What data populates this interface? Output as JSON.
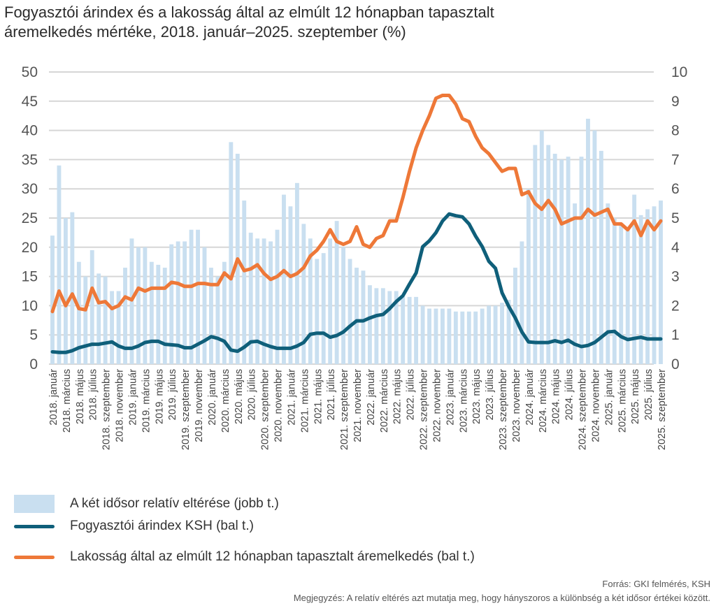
{
  "title_line1": "Fogyasztói árindex és a lakosság által az elmúlt 12 hónapban tapasztalt",
  "title_line2": "áremelkedés mértéke, 2018. január–2025. szeptember (%)",
  "chart_data": {
    "type": "bar+line",
    "title": "Fogyasztói árindex és a lakosság által az elmúlt 12 hónapban tapasztalt áremelkedés mértéke, 2018. január–2025. szeptember (%)",
    "x_start": "2018-01",
    "x_end": "2025-09",
    "left_axis": {
      "ylim": [
        0,
        50
      ],
      "ticks": [
        0,
        5,
        10,
        15,
        20,
        25,
        30,
        35,
        40,
        45,
        50
      ]
    },
    "right_axis": {
      "ylim": [
        0,
        10
      ],
      "ticks": [
        0,
        1,
        2,
        3,
        4,
        5,
        6,
        7,
        8,
        9,
        10
      ]
    },
    "grid": true,
    "legend_position": "bottom",
    "x_tick_labels": [
      "2018. január",
      "2018. március",
      "2018. május",
      "2018. július",
      "2018. szeptember",
      "2018. november",
      "2019. január",
      "2019. március",
      "2019. május",
      "2019. július",
      "2019. szeptember",
      "2019. november",
      "2020. január",
      "2020. március",
      "2020. május",
      "2020. július",
      "2020. szeptember",
      "2020. november",
      "2021. január",
      "2021. március",
      "2021. május",
      "2021. július",
      "2021. szeptember",
      "2021. november",
      "2022. január",
      "2022. március",
      "2022. május",
      "2022. július",
      "2022. szeptember",
      "2022. november",
      "2023. január",
      "2023. március",
      "2023. május",
      "2023. július",
      "2023. szeptember",
      "2023. november",
      "2024. január",
      "2024. március",
      "2024. május",
      "2024. július",
      "2024. szeptember",
      "2024. november",
      "2025. január",
      "2025. március",
      "2025. május",
      "2025. július",
      "2025. szeptember"
    ],
    "series": [
      {
        "name": "A két idősor relatív eltérése (jobb t.)",
        "type": "bar",
        "axis": "right",
        "color": "#c9dff0",
        "values": [
          4.4,
          6.8,
          5.0,
          5.2,
          3.5,
          3.0,
          3.9,
          3.1,
          3.0,
          2.5,
          2.5,
          3.3,
          4.3,
          4.0,
          4.0,
          3.5,
          3.4,
          3.3,
          4.1,
          4.2,
          4.2,
          4.6,
          4.6,
          4.0,
          3.3,
          3.0,
          3.5,
          7.6,
          7.2,
          5.6,
          4.5,
          4.3,
          4.3,
          4.2,
          4.6,
          5.8,
          5.4,
          6.2,
          4.8,
          4.3,
          3.6,
          3.8,
          4.3,
          4.9,
          4.0,
          3.6,
          3.3,
          3.2,
          2.7,
          2.6,
          2.6,
          2.5,
          2.5,
          2.3,
          2.3,
          2.3,
          2.0,
          1.9,
          1.9,
          1.9,
          1.9,
          1.8,
          1.8,
          1.8,
          1.8,
          1.9,
          2.0,
          2.0,
          2.1,
          2.2,
          3.3,
          4.2,
          6.0,
          7.5,
          8.0,
          7.5,
          7.2,
          7.0,
          7.1,
          5.5,
          7.1,
          8.4,
          8.0,
          7.3,
          5.5,
          5.0,
          4.8,
          4.7,
          5.8,
          5.1,
          5.3,
          5.4,
          5.6
        ]
      },
      {
        "name": "Fogyasztói árindex KSH (bal t.)",
        "type": "line",
        "axis": "left",
        "color": "#0f5f7a",
        "values": [
          2.1,
          2.0,
          2.0,
          2.3,
          2.8,
          3.1,
          3.4,
          3.4,
          3.6,
          3.8,
          3.1,
          2.7,
          2.7,
          3.1,
          3.7,
          3.9,
          3.9,
          3.4,
          3.3,
          3.2,
          2.8,
          2.8,
          3.4,
          4.0,
          4.7,
          4.4,
          3.9,
          2.4,
          2.2,
          2.9,
          3.8,
          3.9,
          3.4,
          3.0,
          2.7,
          2.7,
          2.7,
          3.1,
          3.7,
          5.1,
          5.3,
          5.3,
          4.6,
          4.9,
          5.5,
          6.5,
          7.4,
          7.4,
          7.9,
          8.3,
          8.5,
          9.5,
          10.7,
          11.7,
          13.7,
          15.6,
          20.1,
          21.1,
          22.5,
          24.5,
          25.7,
          25.4,
          25.2,
          24.0,
          21.9,
          20.1,
          17.6,
          16.4,
          12.2,
          9.9,
          7.9,
          5.5,
          3.8,
          3.7,
          3.7,
          3.7,
          4.0,
          3.7,
          4.1,
          3.4,
          3.0,
          3.2,
          3.7,
          4.6,
          5.5,
          5.6,
          4.7,
          4.2,
          4.4,
          4.6,
          4.3,
          4.3,
          4.3
        ]
      },
      {
        "name": "Lakosság által az elmúlt 12 hónapban tapasztalt áremelkedés (bal t.)",
        "type": "line",
        "axis": "left",
        "color": "#ee7838",
        "values": [
          9.0,
          12.5,
          10.0,
          12.0,
          9.5,
          9.3,
          13.0,
          10.5,
          10.7,
          9.5,
          10.0,
          11.5,
          11.0,
          13.0,
          12.5,
          13.0,
          13.0,
          13.0,
          14.0,
          13.8,
          13.3,
          13.3,
          13.8,
          13.8,
          13.6,
          13.6,
          15.6,
          14.6,
          18.0,
          16.0,
          16.3,
          17.0,
          15.5,
          14.5,
          15.0,
          16.0,
          15.0,
          15.5,
          16.5,
          18.5,
          19.5,
          21.0,
          23.0,
          21.0,
          20.5,
          21.0,
          23.5,
          20.5,
          20.0,
          21.5,
          22.0,
          24.5,
          24.5,
          28.5,
          33.0,
          37.0,
          40.0,
          42.5,
          45.5,
          46.0,
          46.0,
          44.5,
          42.0,
          41.5,
          39.0,
          37.0,
          36.0,
          34.5,
          33.0,
          33.5,
          33.5,
          29.0,
          29.5,
          27.5,
          26.5,
          28.0,
          26.5,
          24.0,
          24.5,
          25.0,
          25.0,
          26.5,
          25.5,
          26.0,
          26.5,
          24.0,
          24.0,
          23.0,
          24.5,
          22.0,
          24.5,
          23.0,
          24.5
        ]
      }
    ]
  },
  "legend": [
    "A két idősor relatív eltérése (jobb t.)",
    "Fogyasztói árindex KSH (bal t.)",
    "Lakosság által az elmúlt 12 hónapban tapasztalt áremelkedés (bal t.)"
  ],
  "footer": {
    "source": "Forrás: GKI felmérés, KSH",
    "note": "Megjegyzés: A relatív eltérés azt mutatja meg, hogy hányszoros a különbség a két idősor értékei között."
  }
}
